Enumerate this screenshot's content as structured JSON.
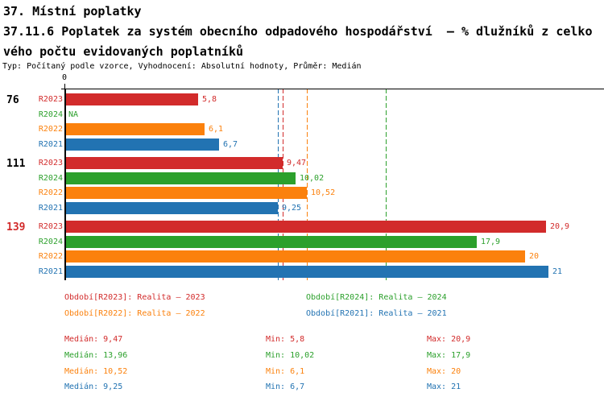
{
  "title": {
    "line1": "37. Místní poplatky",
    "line2": "37.11.6 Poplatek za systém obecního odpadového hospodářství  – % dlužníků z celko",
    "line3": "vého počtu evidovaných poplatníků",
    "meta": "Typ: Počítaný podle vzorce, Vyhodnocení: Absolutní hodnoty, Průměr: Medián"
  },
  "colors": {
    "R2023": "#d22b2b",
    "R2024": "#2ca02c",
    "R2022": "#fb810d",
    "R2021": "#2273b2",
    "axis": "#000000",
    "group_label_highlight": "#d22b2b",
    "group_label_normal": "#000000"
  },
  "chart_data": {
    "type": "bar",
    "orientation": "horizontal",
    "title": "",
    "xlabel": "",
    "ylabel": "",
    "axis_range": [
      0,
      23.4
    ],
    "zero_tick_label": "0",
    "grid": false,
    "series_order": [
      "R2023",
      "R2024",
      "R2022",
      "R2021"
    ],
    "groups": [
      {
        "label": "76",
        "highlight": false,
        "bars": [
          {
            "series": "R2023",
            "value": 5.8,
            "display": "5,8"
          },
          {
            "series": "R2024",
            "value": null,
            "display": "NA"
          },
          {
            "series": "R2022",
            "value": 6.1,
            "display": "6,1"
          },
          {
            "series": "R2021",
            "value": 6.7,
            "display": "6,7"
          }
        ]
      },
      {
        "label": "111",
        "highlight": false,
        "bars": [
          {
            "series": "R2023",
            "value": 9.47,
            "display": "9,47"
          },
          {
            "series": "R2024",
            "value": 10.02,
            "display": "10,02"
          },
          {
            "series": "R2022",
            "value": 10.52,
            "display": "10,52"
          },
          {
            "series": "R2021",
            "value": 9.25,
            "display": "9,25"
          }
        ]
      },
      {
        "label": "139",
        "highlight": true,
        "bars": [
          {
            "series": "R2023",
            "value": 20.9,
            "display": "20,9"
          },
          {
            "series": "R2024",
            "value": 17.9,
            "display": "17,9"
          },
          {
            "series": "R2022",
            "value": 20,
            "display": "20"
          },
          {
            "series": "R2021",
            "value": 21,
            "display": "21"
          }
        ]
      }
    ],
    "median_lines": [
      {
        "series": "R2021",
        "value": 9.25
      },
      {
        "series": "R2023",
        "value": 9.47
      },
      {
        "series": "R2022",
        "value": 10.52
      },
      {
        "series": "R2024",
        "value": 13.96
      }
    ]
  },
  "legend": {
    "items": [
      {
        "series": "R2023",
        "text": "Období[R2023]: Realita – 2023"
      },
      {
        "series": "R2024",
        "text": "Období[R2024]: Realita – 2024"
      },
      {
        "series": "R2022",
        "text": "Období[R2022]: Realita – 2022"
      },
      {
        "series": "R2021",
        "text": "Období[R2021]: Realita – 2021"
      }
    ]
  },
  "stats": {
    "rows": [
      {
        "series": "R2023",
        "median": "Medián: 9,47",
        "min": "Min: 5,8",
        "max": "Max: 20,9"
      },
      {
        "series": "R2024",
        "median": "Medián: 13,96",
        "min": "Min: 10,02",
        "max": "Max: 17,9"
      },
      {
        "series": "R2022",
        "median": "Medián: 10,52",
        "min": "Min: 6,1",
        "max": "Max: 20"
      },
      {
        "series": "R2021",
        "median": "Medián: 9,25",
        "min": "Min: 6,7",
        "max": "Max: 21"
      }
    ]
  }
}
